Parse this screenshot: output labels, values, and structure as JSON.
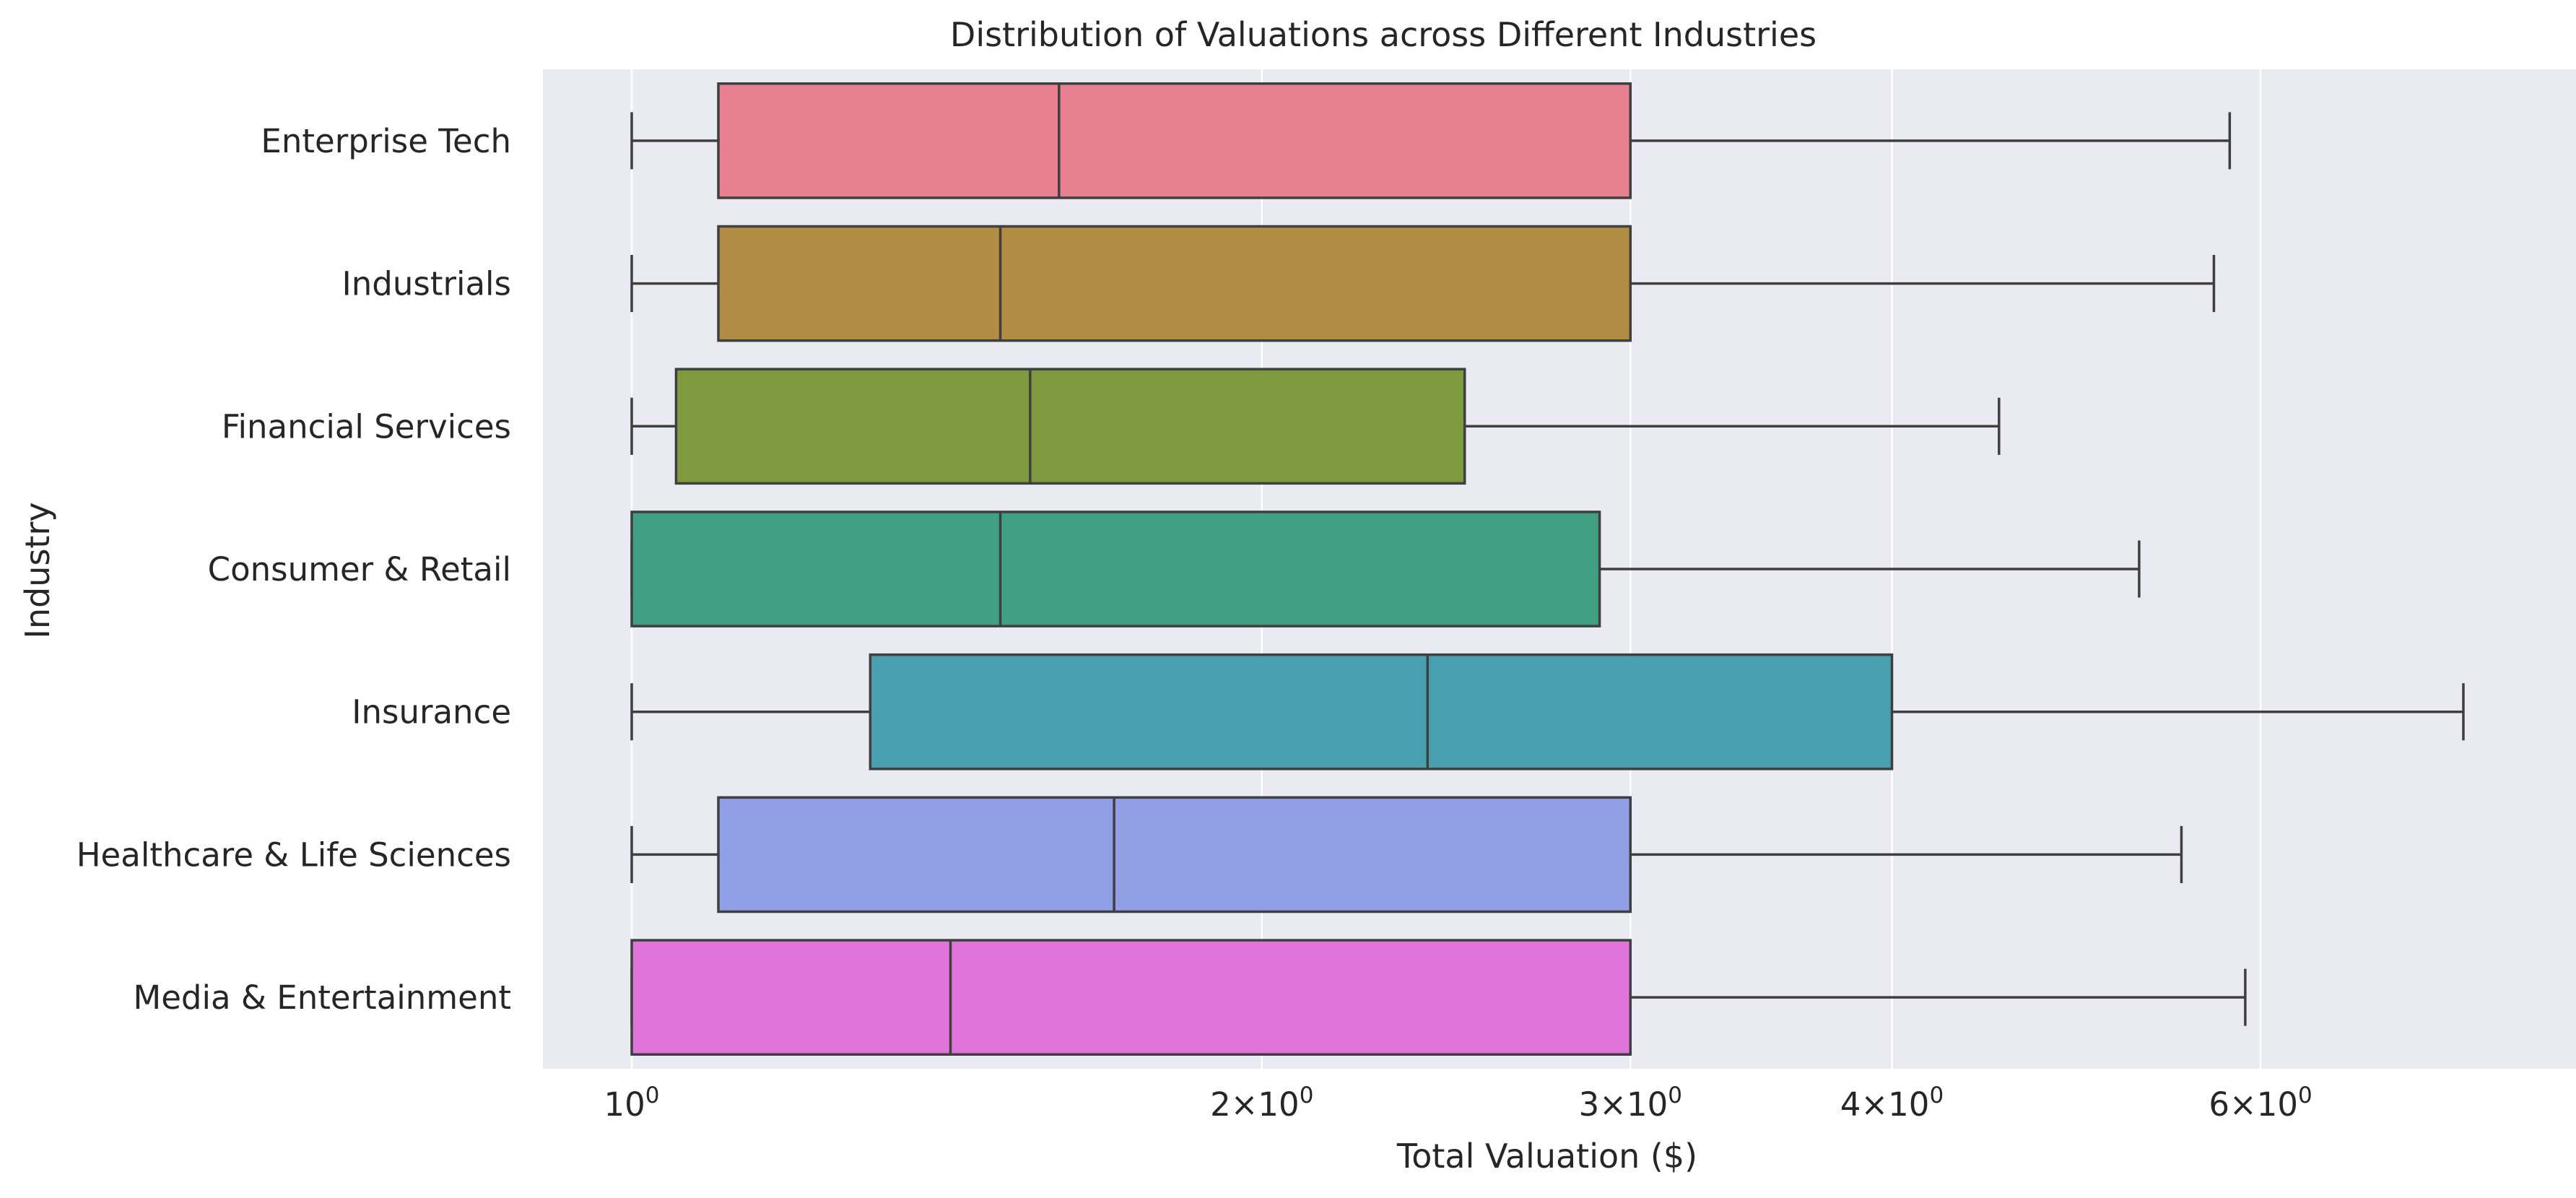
{
  "chart_data": {
    "type": "box",
    "title": "Distribution of Valuations across Different Industries",
    "xlabel": "Total Valuation ($)",
    "ylabel": "Industry",
    "xscale": "log",
    "xlim": [
      0.92,
      8.2
    ],
    "grid": true,
    "legend": "none",
    "background_color": "#eaeaf2",
    "grid_color": "#ffffff",
    "box_edge_color": "#3f3f3f",
    "x_ticks": [
      {
        "value": 1,
        "label": "10",
        "sup": "0",
        "coef": ""
      },
      {
        "value": 2,
        "label": "2×10",
        "sup": "0",
        "coef": "2"
      },
      {
        "value": 3,
        "label": "3×10",
        "sup": "0",
        "coef": "3"
      },
      {
        "value": 4,
        "label": "4×10",
        "sup": "0",
        "coef": "4"
      },
      {
        "value": 6,
        "label": "6×10",
        "sup": "0",
        "coef": "6"
      }
    ],
    "categories": [
      "Enterprise Tech",
      "Industrials",
      "Financial Services",
      "Consumer & Retail",
      "Insurance",
      "Healthcare & Life Sciences",
      "Media & Entertainment"
    ],
    "boxes": [
      {
        "category": "Enterprise Tech",
        "color": "#e88092",
        "whisker_low": 1.0,
        "q1": 1.1,
        "median": 1.6,
        "q3": 3.0,
        "whisker_high": 5.8
      },
      {
        "category": "Industrials",
        "color": "#b38c43",
        "whisker_low": 1.0,
        "q1": 1.1,
        "median": 1.5,
        "q3": 3.0,
        "whisker_high": 5.7
      },
      {
        "category": "Financial Services",
        "color": "#7e9a3f",
        "whisker_low": 1.0,
        "q1": 1.05,
        "median": 1.55,
        "q3": 2.5,
        "whisker_high": 4.5
      },
      {
        "category": "Consumer & Retail",
        "color": "#41a083",
        "whisker_low": 1.0,
        "q1": 1.0,
        "median": 1.5,
        "q3": 2.9,
        "whisker_high": 5.25
      },
      {
        "category": "Insurance",
        "color": "#48a0ae",
        "whisker_low": 1.0,
        "q1": 1.3,
        "median": 2.4,
        "q3": 4.0,
        "whisker_high": 7.5
      },
      {
        "category": "Healthcare & Life Sciences",
        "color": "#919fe6",
        "whisker_low": 1.0,
        "q1": 1.1,
        "median": 1.7,
        "q3": 3.0,
        "whisker_high": 5.5
      },
      {
        "category": "Media & Entertainment",
        "color": "#e073da",
        "whisker_low": 1.0,
        "q1": 1.0,
        "median": 1.42,
        "q3": 3.0,
        "whisker_high": 5.9
      }
    ]
  }
}
